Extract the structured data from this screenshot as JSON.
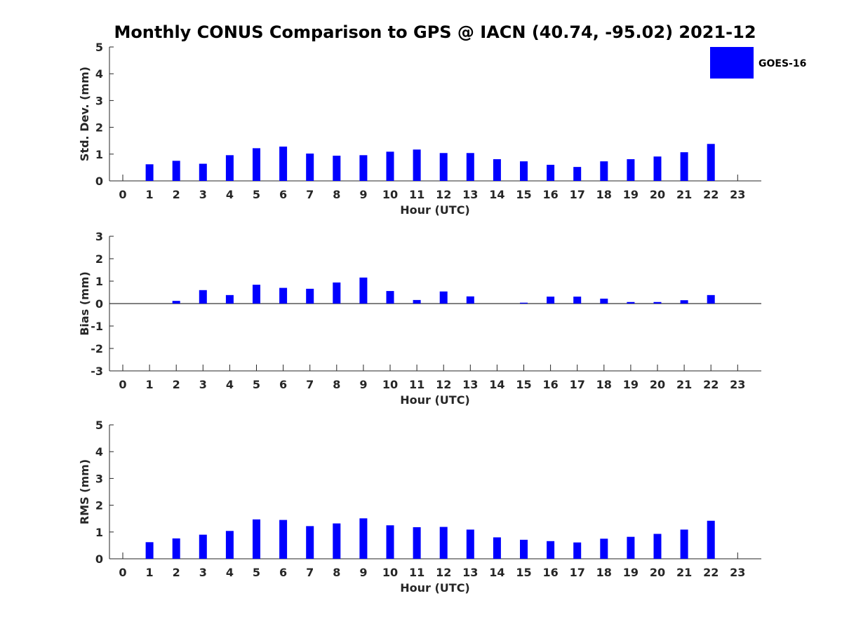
{
  "title": "Monthly CONUS Comparison to GPS @ IACN (40.74, -95.02) 2021-12",
  "legend": {
    "label": "GOES-16",
    "color": "#0000ff",
    "placement": "top-right"
  },
  "chart_data": [
    {
      "type": "bar",
      "name": "std-dev",
      "ylabel": "Std. Dev. (mm)",
      "xlabel": "Hour (UTC)",
      "ylim": [
        0,
        5
      ],
      "yticks": [
        0,
        1,
        2,
        3,
        4,
        5
      ],
      "categories": [
        "0",
        "1",
        "2",
        "3",
        "4",
        "5",
        "6",
        "7",
        "8",
        "9",
        "10",
        "11",
        "12",
        "13",
        "14",
        "15",
        "16",
        "17",
        "18",
        "19",
        "20",
        "21",
        "22",
        "23"
      ],
      "series": [
        {
          "name": "GOES-16",
          "values": [
            null,
            0.62,
            0.75,
            0.64,
            0.96,
            1.22,
            1.28,
            1.02,
            0.94,
            0.96,
            1.09,
            1.17,
            1.04,
            1.04,
            0.81,
            0.73,
            0.6,
            0.52,
            0.73,
            0.81,
            0.91,
            1.07,
            1.38,
            null
          ]
        }
      ]
    },
    {
      "type": "bar",
      "name": "bias",
      "ylabel": "Bias (mm)",
      "xlabel": "Hour (UTC)",
      "ylim": [
        -3,
        3
      ],
      "yticks": [
        -3,
        -2,
        -1,
        0,
        1,
        2,
        3
      ],
      "categories": [
        "0",
        "1",
        "2",
        "3",
        "4",
        "5",
        "6",
        "7",
        "8",
        "9",
        "10",
        "11",
        "12",
        "13",
        "14",
        "15",
        "16",
        "17",
        "18",
        "19",
        "20",
        "21",
        "22",
        "23"
      ],
      "series": [
        {
          "name": "GOES-16",
          "values": [
            null,
            0.0,
            0.12,
            0.6,
            0.38,
            0.84,
            0.7,
            0.66,
            0.94,
            1.16,
            0.56,
            0.16,
            0.54,
            0.32,
            0.0,
            0.04,
            0.31,
            0.31,
            0.22,
            0.07,
            0.07,
            0.15,
            0.38,
            null
          ]
        }
      ]
    },
    {
      "type": "bar",
      "name": "rms",
      "ylabel": "RMS (mm)",
      "xlabel": "Hour (UTC)",
      "ylim": [
        0,
        5
      ],
      "yticks": [
        0,
        1,
        2,
        3,
        4,
        5
      ],
      "categories": [
        "0",
        "1",
        "2",
        "3",
        "4",
        "5",
        "6",
        "7",
        "8",
        "9",
        "10",
        "11",
        "12",
        "13",
        "14",
        "15",
        "16",
        "17",
        "18",
        "19",
        "20",
        "21",
        "22",
        "23"
      ],
      "series": [
        {
          "name": "GOES-16",
          "values": [
            null,
            0.62,
            0.76,
            0.9,
            1.04,
            1.47,
            1.45,
            1.22,
            1.32,
            1.51,
            1.25,
            1.18,
            1.19,
            1.09,
            0.8,
            0.71,
            0.66,
            0.61,
            0.75,
            0.82,
            0.93,
            1.09,
            1.42,
            null
          ]
        }
      ]
    }
  ]
}
